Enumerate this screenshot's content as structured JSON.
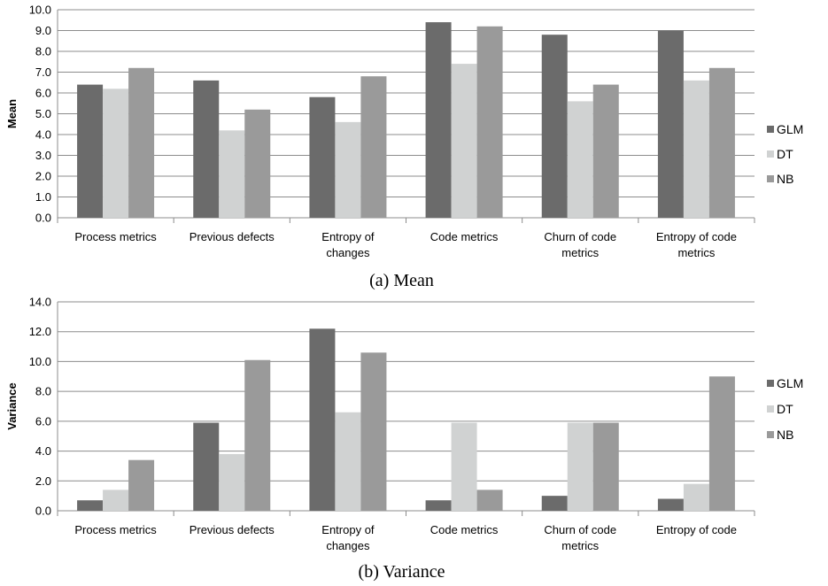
{
  "colors": {
    "GLM": "#6b6b6b",
    "DT": "#d0d2d2",
    "NB": "#9a9a9a",
    "grid": "#8c8c8c"
  },
  "chart_data": [
    {
      "type": "bar",
      "caption": "(a) Mean",
      "ylabel": "Mean",
      "ylim": [
        0,
        10
      ],
      "ytick_step": 1,
      "ytick_labels": [
        "0.0",
        "1.0",
        "2.0",
        "3.0",
        "4.0",
        "5.0",
        "6.0",
        "7.0",
        "8.0",
        "9.0",
        "10.0"
      ],
      "grid": true,
      "legend_position": "right",
      "categories": [
        [
          "Process metrics"
        ],
        [
          "Previous defects"
        ],
        [
          "Entropy of",
          "changes"
        ],
        [
          "Code metrics"
        ],
        [
          "Churn of code",
          "metrics"
        ],
        [
          "Entropy of code",
          "metrics"
        ]
      ],
      "series": [
        {
          "name": "GLM",
          "values": [
            6.4,
            6.6,
            5.8,
            9.4,
            8.8,
            9.0
          ]
        },
        {
          "name": "DT",
          "values": [
            6.2,
            4.2,
            4.6,
            7.4,
            5.6,
            6.6
          ]
        },
        {
          "name": "NB",
          "values": [
            7.2,
            5.2,
            6.8,
            9.2,
            6.4,
            7.2
          ]
        }
      ]
    },
    {
      "type": "bar",
      "caption": "(b) Variance",
      "ylabel": "Variance",
      "ylim": [
        0,
        14
      ],
      "ytick_step": 2,
      "ytick_labels": [
        "0.0",
        "2.0",
        "4.0",
        "6.0",
        "8.0",
        "10.0",
        "12.0",
        "14.0"
      ],
      "grid": true,
      "legend_position": "right",
      "categories": [
        [
          "Process metrics"
        ],
        [
          "Previous defects"
        ],
        [
          "Entropy of",
          "changes"
        ],
        [
          "Code metrics"
        ],
        [
          "Churn of code",
          "metrics"
        ],
        [
          "Entropy of code"
        ]
      ],
      "series": [
        {
          "name": "GLM",
          "values": [
            0.7,
            5.9,
            12.2,
            0.7,
            1.0,
            0.8
          ]
        },
        {
          "name": "DT",
          "values": [
            1.4,
            3.8,
            6.6,
            5.9,
            5.9,
            1.8
          ]
        },
        {
          "name": "NB",
          "values": [
            3.4,
            10.1,
            10.6,
            1.4,
            5.9,
            9.0
          ]
        }
      ]
    }
  ]
}
